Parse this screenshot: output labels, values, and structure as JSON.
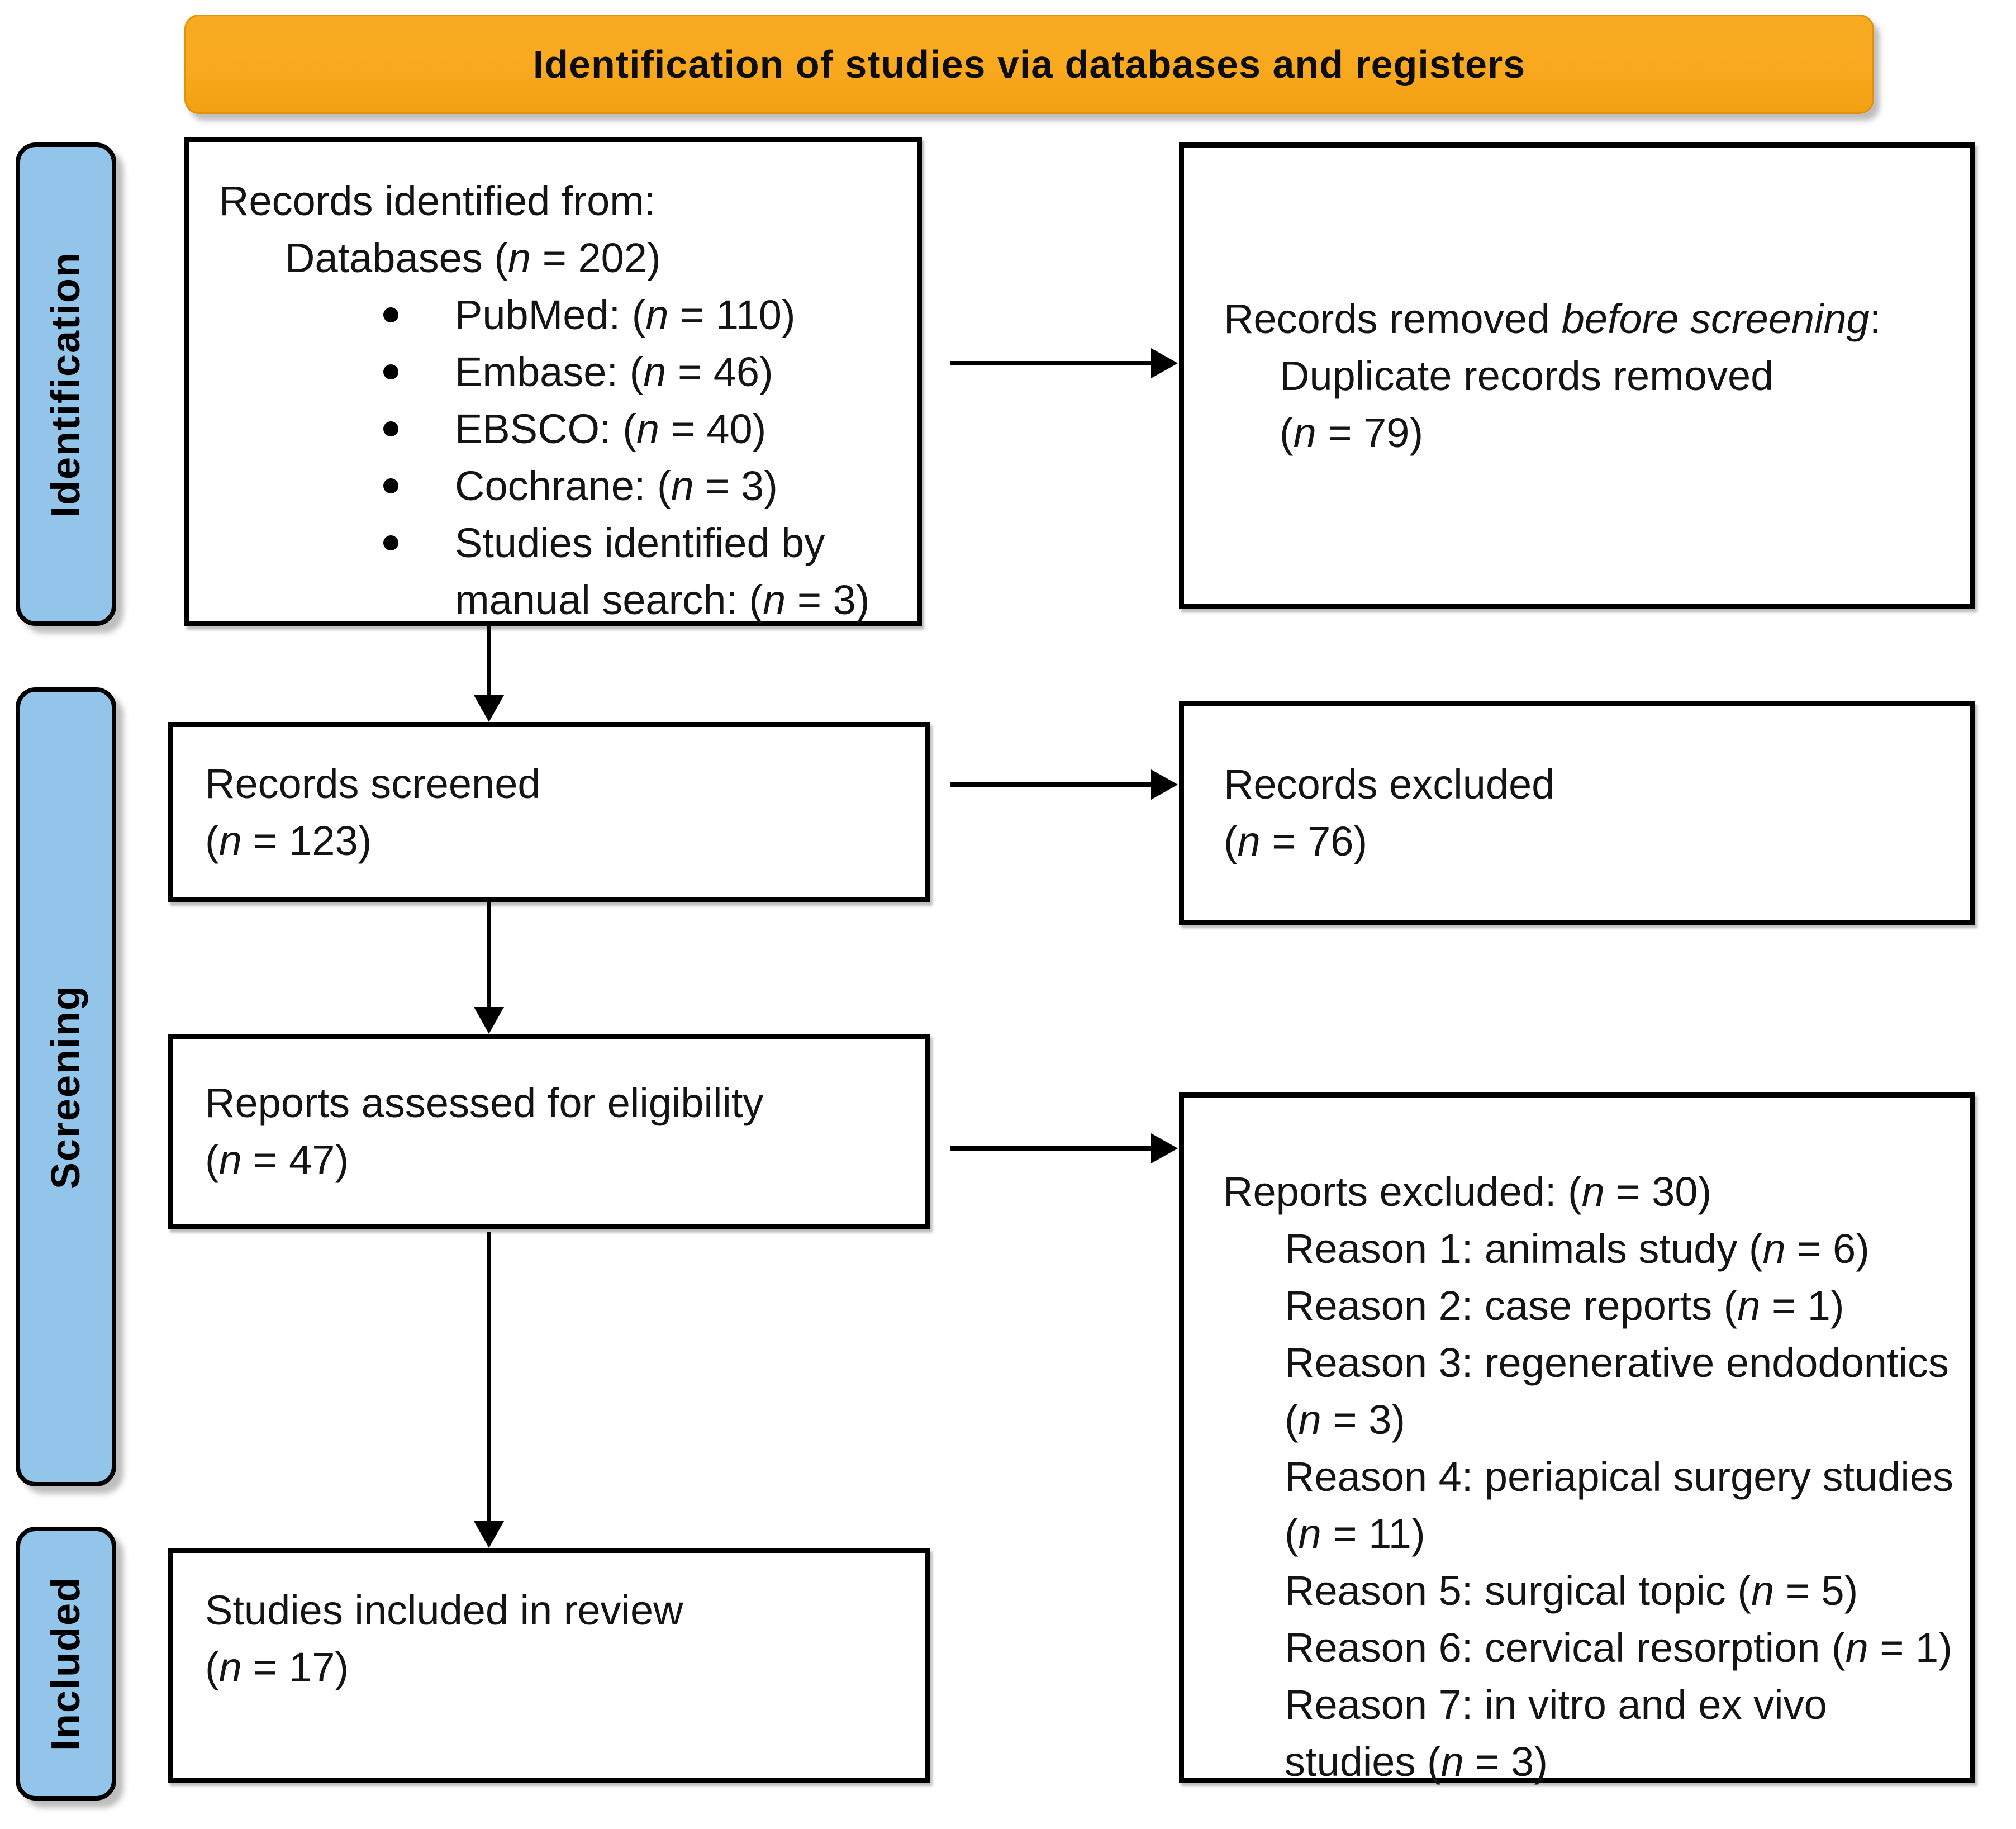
{
  "banner": {
    "title": "Identification of studies via databases and registers"
  },
  "colors": {
    "banner_bg": "#F9A91E",
    "sidebar_bg": "#92C5E9",
    "box_border": "#000000",
    "box_bg": "#FFFFFF",
    "text": "#141414"
  },
  "sidebar": {
    "labels": [
      {
        "id": "identification",
        "text": "Identification"
      },
      {
        "id": "screening",
        "text": "Screening"
      },
      {
        "id": "included",
        "text": "Included"
      }
    ]
  },
  "boxes": {
    "records_identified": {
      "lines": [
        {
          "segments": [
            {
              "t": "Records identified from:"
            }
          ]
        },
        {
          "indent": 1,
          "segments": [
            {
              "t": "Databases ("
            },
            {
              "t": "n",
              "i": true
            },
            {
              "t": " = 202)"
            }
          ]
        },
        {
          "bullet": true,
          "segments": [
            {
              "t": "PubMed: ("
            },
            {
              "t": "n",
              "i": true
            },
            {
              "t": " = 110)"
            }
          ]
        },
        {
          "bullet": true,
          "segments": [
            {
              "t": "Embase: ("
            },
            {
              "t": "n",
              "i": true
            },
            {
              "t": " = 46)"
            }
          ]
        },
        {
          "bullet": true,
          "segments": [
            {
              "t": "EBSCO: ("
            },
            {
              "t": "n",
              "i": true
            },
            {
              "t": " = 40)"
            }
          ]
        },
        {
          "bullet": true,
          "segments": [
            {
              "t": "Cochrane: ("
            },
            {
              "t": "n",
              "i": true
            },
            {
              "t": " = 3)"
            }
          ]
        },
        {
          "bullet": true,
          "segments": [
            {
              "t": "Studies identified by"
            }
          ]
        },
        {
          "cont": true,
          "segments": [
            {
              "t": "manual search: ("
            },
            {
              "t": "n",
              "i": true
            },
            {
              "t": " = 3)"
            }
          ]
        }
      ]
    },
    "records_removed": {
      "lines": [
        {
          "segments": [
            {
              "t": "Records removed "
            },
            {
              "t": "before screening",
              "i": true
            },
            {
              "t": ":"
            }
          ]
        },
        {
          "indent": 1,
          "segments": [
            {
              "t": "Duplicate records removed"
            }
          ]
        },
        {
          "indent": 1,
          "segments": [
            {
              "t": "("
            },
            {
              "t": "n",
              "i": true
            },
            {
              "t": " = 79)"
            }
          ]
        }
      ]
    },
    "records_screened": {
      "lines": [
        {
          "segments": [
            {
              "t": "Records screened"
            }
          ]
        },
        {
          "segments": [
            {
              "t": "("
            },
            {
              "t": "n",
              "i": true
            },
            {
              "t": " = 123)"
            }
          ]
        }
      ]
    },
    "records_excluded": {
      "lines": [
        {
          "segments": [
            {
              "t": "Records excluded"
            }
          ]
        },
        {
          "segments": [
            {
              "t": "("
            },
            {
              "t": "n",
              "i": true
            },
            {
              "t": " = 76)"
            }
          ]
        }
      ]
    },
    "reports_assessed": {
      "lines": [
        {
          "segments": [
            {
              "t": "Reports assessed for eligibility"
            }
          ]
        },
        {
          "segments": [
            {
              "t": "("
            },
            {
              "t": "n",
              "i": true
            },
            {
              "t": " = 47)"
            }
          ]
        }
      ]
    },
    "reports_excluded": {
      "lines": [
        {
          "segments": [
            {
              "t": "Reports excluded: ("
            },
            {
              "t": "n",
              "i": true
            },
            {
              "t": " = 30)"
            }
          ]
        },
        {
          "indent": 1,
          "segments": [
            {
              "t": "Reason 1: animals study ("
            },
            {
              "t": "n",
              "i": true
            },
            {
              "t": " = 6)"
            }
          ]
        },
        {
          "indent": 1,
          "segments": [
            {
              "t": "Reason 2: case reports ("
            },
            {
              "t": "n",
              "i": true
            },
            {
              "t": " = 1)"
            }
          ]
        },
        {
          "indent": 1,
          "segments": [
            {
              "t": "Reason 3: regenerative endodontics"
            }
          ]
        },
        {
          "indent": 1,
          "segments": [
            {
              "t": "("
            },
            {
              "t": "n",
              "i": true
            },
            {
              "t": " = 3)"
            }
          ]
        },
        {
          "indent": 1,
          "segments": [
            {
              "t": "Reason 4: periapical surgery studies"
            }
          ]
        },
        {
          "indent": 1,
          "segments": [
            {
              "t": "("
            },
            {
              "t": "n",
              "i": true
            },
            {
              "t": " = 11)"
            }
          ]
        },
        {
          "indent": 1,
          "segments": [
            {
              "t": "Reason 5: surgical topic ("
            },
            {
              "t": "n",
              "i": true
            },
            {
              "t": " = 5)"
            }
          ]
        },
        {
          "indent": 1,
          "segments": [
            {
              "t": "Reason 6: cervical resorption ("
            },
            {
              "t": "n",
              "i": true
            },
            {
              "t": " = 1)"
            }
          ]
        },
        {
          "indent": 1,
          "segments": [
            {
              "t": "Reason 7: in vitro and ex vivo"
            }
          ]
        },
        {
          "indent": 1,
          "segments": [
            {
              "t": "studies ("
            },
            {
              "t": "n",
              "i": true
            },
            {
              "t": " = 3)"
            }
          ]
        }
      ]
    },
    "studies_included": {
      "lines": [
        {
          "segments": [
            {
              "t": "Studies included in review"
            }
          ]
        },
        {
          "segments": [
            {
              "t": "("
            },
            {
              "t": "n",
              "i": true
            },
            {
              "t": " = 17)"
            }
          ]
        }
      ]
    }
  }
}
